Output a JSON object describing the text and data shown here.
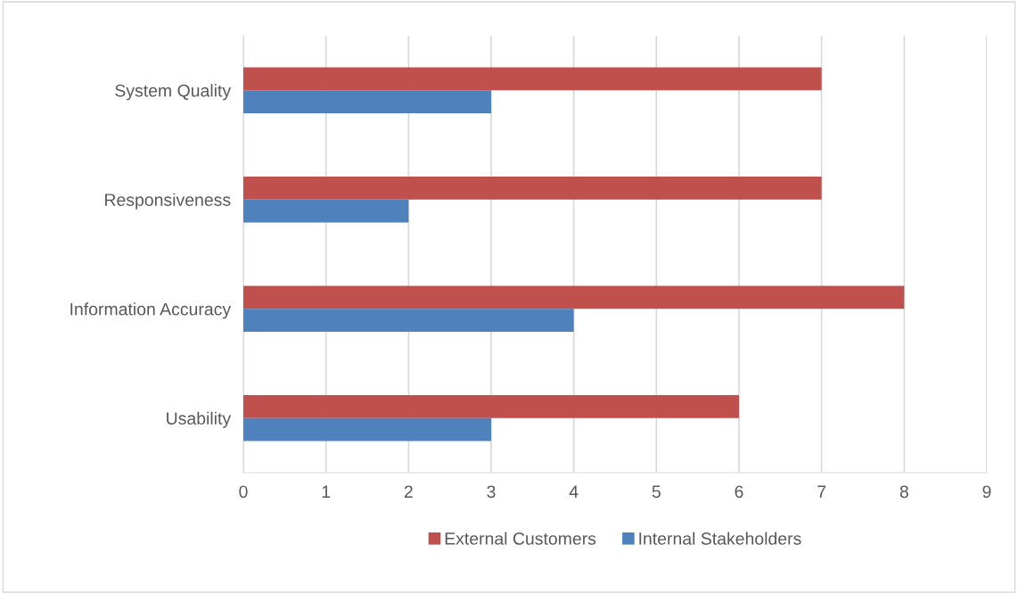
{
  "chart_data": {
    "type": "bar",
    "orientation": "horizontal",
    "categories": [
      "System Quality",
      "Responsiveness",
      "Information Accuracy",
      "Usability"
    ],
    "series": [
      {
        "name": "External Customers",
        "color": "#c0504d",
        "values": [
          7,
          7,
          8,
          6
        ]
      },
      {
        "name": "Internal Stakeholders",
        "color": "#4f81bd",
        "values": [
          3,
          2,
          4,
          3
        ]
      }
    ],
    "xlim": [
      0,
      9
    ],
    "xticks": [
      0,
      1,
      2,
      3,
      4,
      5,
      6,
      7,
      8,
      9
    ],
    "grid": "x",
    "legend": "bottom"
  }
}
